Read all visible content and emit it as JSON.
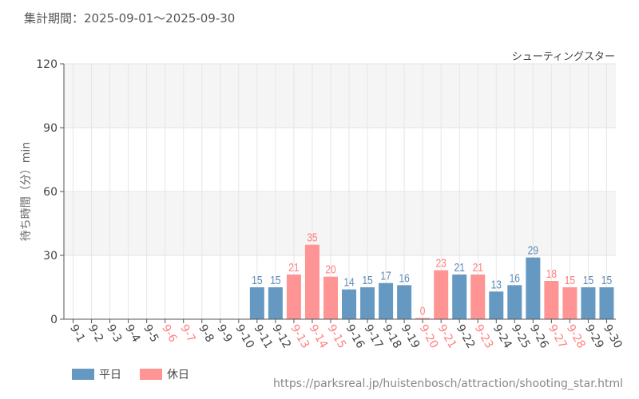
{
  "header": {
    "period": "集計期間：2025-09-01～2025-09-30",
    "attraction": "シューティングスター"
  },
  "footer": {
    "url": "https://parksreal.jp/huistenbosch/attraction/shooting_star.html"
  },
  "colors": {
    "weekday": "#6699c2",
    "holiday": "#ff9494",
    "weekday_text": "#5b8ab5",
    "holiday_text": "#ff7f7f"
  },
  "chart_data": {
    "type": "bar",
    "ylabel": "待ち時間（分）min",
    "ylim": [
      0,
      120
    ],
    "yticks": [
      0,
      30,
      60,
      90,
      120
    ],
    "categories": [
      "9-1",
      "9-2",
      "9-3",
      "9-4",
      "9-5",
      "9-6",
      "9-7",
      "9-8",
      "9-9",
      "9-10",
      "9-11",
      "9-12",
      "9-13",
      "9-14",
      "9-15",
      "9-16",
      "9-17",
      "9-18",
      "9-19",
      "9-20",
      "9-21",
      "9-22",
      "9-23",
      "9-24",
      "9-25",
      "9-26",
      "9-27",
      "9-28",
      "9-29",
      "9-30"
    ],
    "values": [
      null,
      null,
      null,
      null,
      null,
      null,
      null,
      null,
      null,
      null,
      15,
      15,
      21,
      35,
      20,
      14,
      15,
      17,
      16,
      0,
      23,
      21,
      21,
      13,
      16,
      29,
      18,
      15,
      15,
      15
    ],
    "holiday": [
      false,
      false,
      false,
      false,
      false,
      true,
      true,
      false,
      false,
      false,
      false,
      false,
      true,
      true,
      true,
      false,
      false,
      false,
      false,
      true,
      true,
      false,
      true,
      false,
      false,
      false,
      true,
      true,
      false,
      false
    ],
    "legend": [
      {
        "name": "平日",
        "key": "weekday"
      },
      {
        "name": "休日",
        "key": "holiday"
      }
    ],
    "legend_position": "bottom-left",
    "grid": true
  }
}
